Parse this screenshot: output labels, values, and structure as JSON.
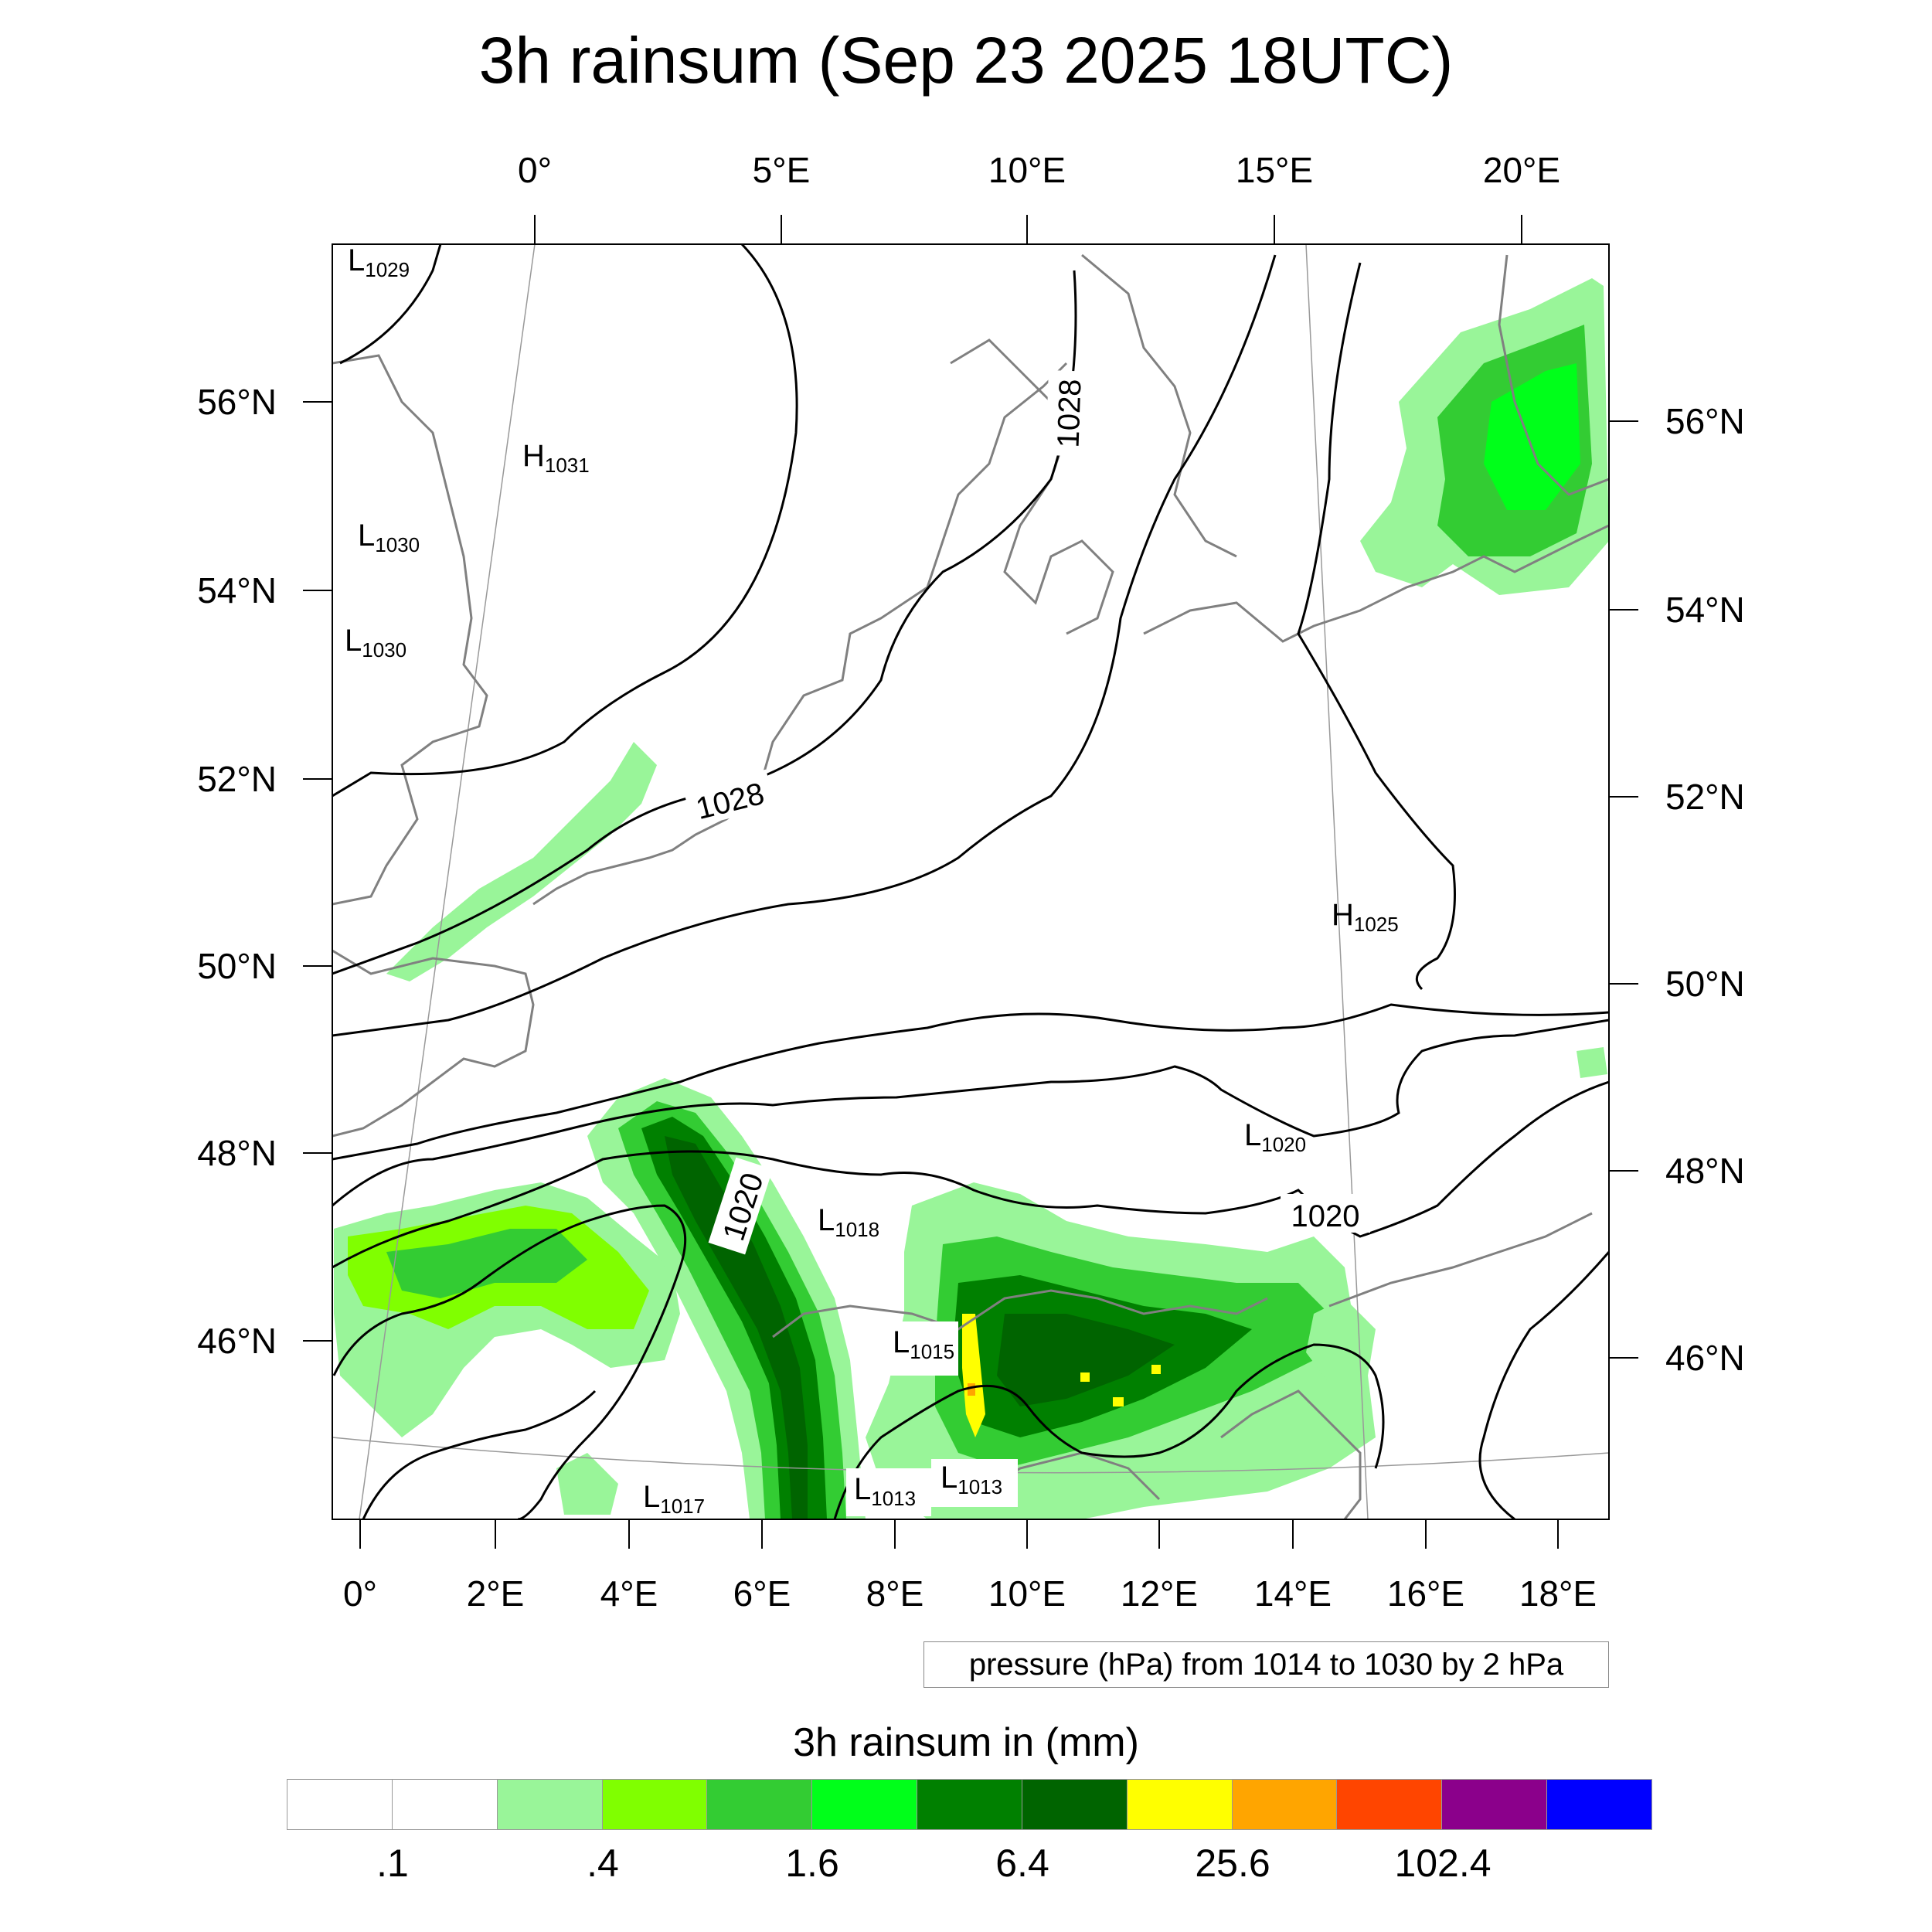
{
  "title": "3h rainsum (Sep 23 2025 18UTC)",
  "top_lon_labels": [
    "0°",
    "5°E",
    "10°E",
    "15°E",
    "20°E"
  ],
  "bottom_lon_labels": [
    "0°",
    "2°E",
    "4°E",
    "6°E",
    "8°E",
    "10°E",
    "12°E",
    "14°E",
    "16°E",
    "18°E"
  ],
  "left_lat_labels": [
    "56°N",
    "54°N",
    "52°N",
    "50°N",
    "48°N",
    "46°N"
  ],
  "right_lat_labels": [
    "56°N",
    "54°N",
    "52°N",
    "50°N",
    "48°N",
    "46°N"
  ],
  "contour_labels": [
    "1028",
    "1028",
    "1020",
    "1020"
  ],
  "pressure_centers": [
    {
      "type": "L",
      "value": "1029"
    },
    {
      "type": "H",
      "value": "1031"
    },
    {
      "type": "L",
      "value": "1030"
    },
    {
      "type": "L",
      "value": "1030"
    },
    {
      "type": "H",
      "value": "1025"
    },
    {
      "type": "L",
      "value": "1020"
    },
    {
      "type": "L",
      "value": "1018"
    },
    {
      "type": "L",
      "value": "1015"
    },
    {
      "type": "L",
      "value": "1017"
    },
    {
      "type": "L",
      "value": "1013"
    },
    {
      "type": "L",
      "value": "1013"
    }
  ],
  "info_box": "pressure (hPa) from 1014 to 1030 by 2 hPa",
  "legend": {
    "title": "3h rainsum in (mm)",
    "colors": [
      "#ffffff",
      "#ffffff",
      "#99f599",
      "#80ff00",
      "#33cc33",
      "#00ff1a",
      "#008000",
      "#006400",
      "#ffff00",
      "#ffa500",
      "#ff4500",
      "#8b008b",
      "#0000ff"
    ],
    "labels": [
      ".1",
      ".4",
      "1.6",
      "6.4",
      "25.6",
      "102.4"
    ]
  },
  "colors": {
    "rain_light": "#99f599",
    "rain_lime": "#80ff00",
    "rain_mid": "#33cc33",
    "rain_green": "#00ff1a",
    "rain_dark": "#008000",
    "rain_darker": "#006400",
    "rain_yellow": "#ffff00",
    "rain_orange": "#ffa500",
    "coast": "#808080",
    "isobar": "#000000"
  }
}
